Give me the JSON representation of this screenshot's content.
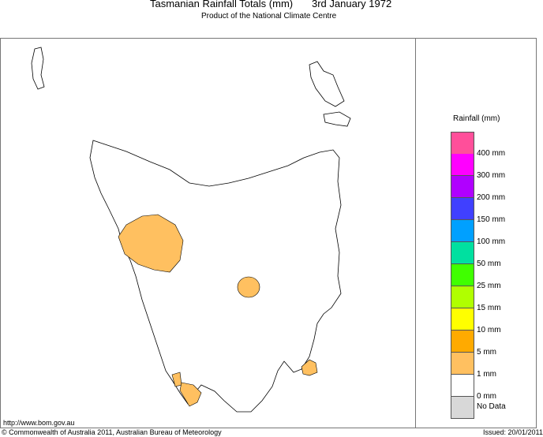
{
  "header": {
    "title": "Tasmanian Rainfall Totals (mm)",
    "date": "3rd January 1972",
    "subtitle": "Product of the National Climate Centre"
  },
  "legend": {
    "title": "Rainfall (mm)",
    "swatches": [
      {
        "color": "#ff4f9a"
      },
      {
        "color": "#ff00ff"
      },
      {
        "color": "#b000ff"
      },
      {
        "color": "#4040ff"
      },
      {
        "color": "#00a0ff"
      },
      {
        "color": "#00e0a0"
      },
      {
        "color": "#40ff00"
      },
      {
        "color": "#b0ff00"
      },
      {
        "color": "#ffff00"
      },
      {
        "color": "#ffaa00"
      },
      {
        "color": "#ffc060"
      },
      {
        "color": "#ffffff"
      },
      {
        "color": "#d8d8d8"
      }
    ],
    "labels": [
      "400 mm",
      "300 mm",
      "200 mm",
      "150 mm",
      "100 mm",
      "50 mm",
      "25 mm",
      "15 mm",
      "10 mm",
      "5 mm",
      "1 mm",
      "0 mm",
      "No Data"
    ]
  },
  "footer": {
    "url": "http://www.bom.gov.au",
    "copyright": "© Commonwealth of Australia 2011, Australian Bureau of Meteorology",
    "issued": "Issued: 20/01/2011"
  }
}
